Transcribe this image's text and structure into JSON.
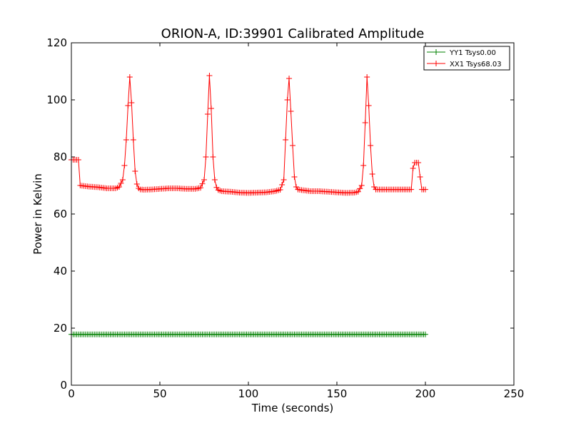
{
  "chart_data": {
    "type": "line",
    "title": "ORION-A, ID:39901 Calibrated Amplitude",
    "xlabel": "Time (seconds)",
    "ylabel": "Power in Kelvin",
    "xlim": [
      0,
      250
    ],
    "ylim": [
      0,
      120
    ],
    "xticks": [
      0,
      50,
      100,
      150,
      200,
      250
    ],
    "yticks": [
      0,
      20,
      40,
      60,
      80,
      100,
      120
    ],
    "grid": false,
    "legend_position": "top-right",
    "marker": "+",
    "series": [
      {
        "name": "YY1 Tsys0.00",
        "color": "#008000",
        "x": [
          0,
          10,
          20,
          40,
          60,
          80,
          100,
          120,
          140,
          160,
          180,
          192,
          200
        ],
        "y": [
          17.8,
          17.8,
          17.8,
          17.8,
          17.8,
          17.8,
          17.8,
          17.8,
          17.8,
          17.8,
          17.8,
          17.8,
          17.8
        ]
      },
      {
        "name": "XX1 Tsys68.03",
        "color": "#ff0000",
        "x": [
          0,
          3,
          4,
          5,
          10,
          15,
          20,
          25,
          27,
          29,
          30,
          31,
          32,
          33,
          34,
          35,
          36,
          37,
          38,
          39,
          41,
          45,
          50,
          55,
          60,
          65,
          70,
          73,
          75,
          76,
          77,
          78,
          79,
          80,
          81,
          82,
          83,
          85,
          90,
          95,
          100,
          105,
          110,
          115,
          118,
          120,
          121,
          122,
          123,
          124,
          125,
          126,
          127,
          128,
          130,
          135,
          140,
          145,
          150,
          155,
          160,
          162,
          164,
          165,
          166,
          167,
          168,
          169,
          170,
          171,
          172,
          174,
          180,
          185,
          190,
          192,
          193,
          194,
          196,
          197,
          198,
          200
        ],
        "y": [
          79,
          79,
          79,
          70,
          69.6,
          69.4,
          69,
          69,
          69.5,
          72,
          77,
          86,
          98,
          108,
          99,
          86,
          75,
          70.5,
          69,
          68.6,
          68.5,
          68.6,
          68.8,
          69,
          69,
          68.8,
          68.8,
          69.2,
          72,
          80,
          95,
          108.5,
          97,
          80,
          72,
          69.3,
          68.4,
          68,
          67.8,
          67.5,
          67.4,
          67.5,
          67.6,
          68,
          68.5,
          72,
          86,
          100,
          107.5,
          96,
          84,
          73,
          69.5,
          68.6,
          68.4,
          68,
          68,
          67.8,
          67.6,
          67.4,
          67.5,
          67.8,
          70,
          77,
          92,
          108,
          98,
          84,
          74,
          69.5,
          68.6,
          68.6,
          68.6,
          68.6,
          68.6,
          68.6,
          76,
          78,
          78,
          73,
          68.6,
          68.6
        ]
      }
    ]
  }
}
